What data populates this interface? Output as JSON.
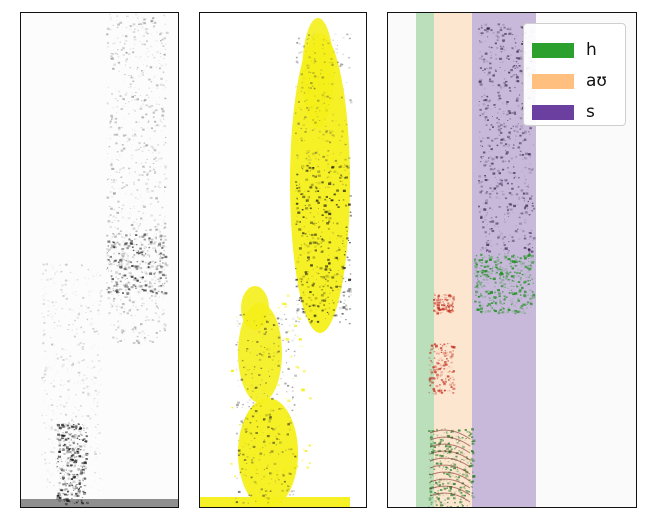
{
  "panels": [
    {
      "id": "raw-spectrogram"
    },
    {
      "id": "highlighted-spectrogram",
      "highlight_color": "#f5ef1a"
    },
    {
      "id": "segmented-spectrogram"
    }
  ],
  "legend": {
    "items": [
      {
        "label": "h",
        "color": "#2ca02c",
        "icon": "green-swatch"
      },
      {
        "label": "aʊ",
        "color": "#ffbf7f",
        "icon": "orange-swatch"
      },
      {
        "label": "s",
        "color": "#6b3fa0",
        "icon": "purple-swatch"
      }
    ]
  }
}
